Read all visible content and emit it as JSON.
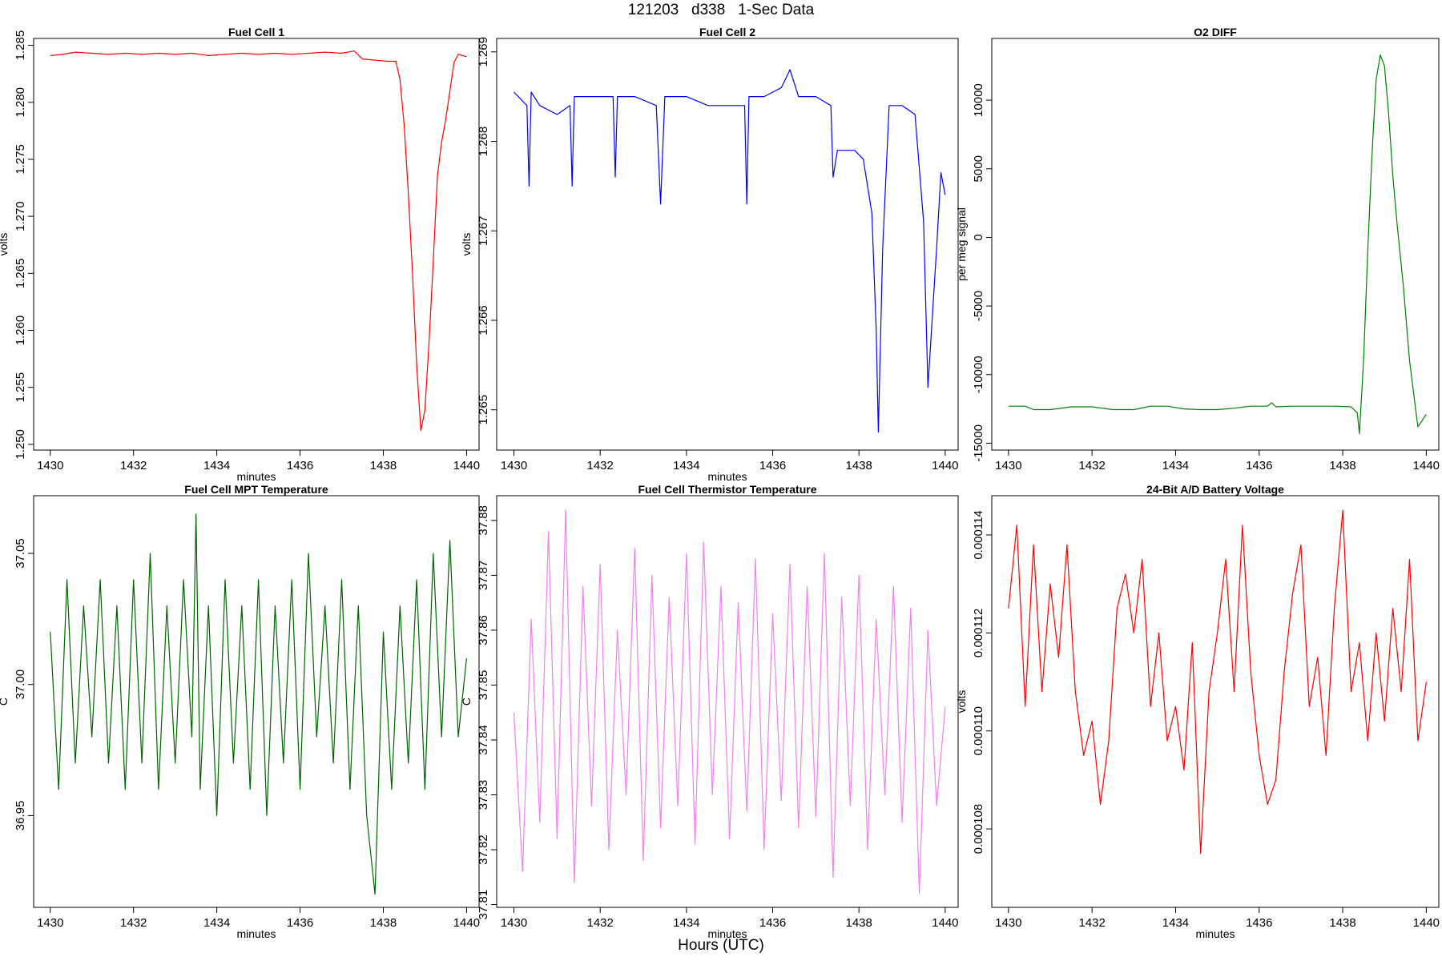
{
  "page": {
    "title": "121203   d338   1-Sec Data",
    "footer": "Hours (UTC)"
  },
  "chart_data": [
    {
      "type": "line",
      "title": "Fuel Cell 1",
      "xlabel": "minutes",
      "ylabel": "volts",
      "color": "#ff0000",
      "xlim": [
        1429.6,
        1440.3
      ],
      "ylim": [
        1.2495,
        1.2856
      ],
      "xticks": [
        1430,
        1432,
        1434,
        1436,
        1438,
        1440
      ],
      "xtick_labels": [
        "1430",
        "1432",
        "1434",
        "1436",
        "1438",
        "1440"
      ],
      "yticks": [
        1.25,
        1.255,
        1.26,
        1.265,
        1.27,
        1.275,
        1.28,
        1.285
      ],
      "ytick_labels": [
        "1.250",
        "1.255",
        "1.260",
        "1.265",
        "1.270",
        "1.275",
        "1.280",
        "1.285"
      ],
      "series": [
        {
          "x": [
            1430.0,
            1430.3,
            1430.6,
            1431.0,
            1431.4,
            1431.8,
            1432.2,
            1432.6,
            1433.0,
            1433.4,
            1433.8,
            1434.2,
            1434.6,
            1435.0,
            1435.4,
            1435.8,
            1436.2,
            1436.6,
            1437.0,
            1437.3,
            1437.5,
            1437.8,
            1438.1,
            1438.3,
            1438.4,
            1438.5,
            1438.6,
            1438.7,
            1438.8,
            1438.9,
            1439.0,
            1439.1,
            1439.2,
            1439.3,
            1439.4,
            1439.5,
            1439.6,
            1439.7,
            1439.8,
            1440.0
          ],
          "y": [
            1.2841,
            1.2842,
            1.2844,
            1.2843,
            1.2842,
            1.2843,
            1.2842,
            1.2843,
            1.2842,
            1.2843,
            1.2841,
            1.2842,
            1.2843,
            1.2842,
            1.2843,
            1.2842,
            1.2843,
            1.2844,
            1.2843,
            1.2845,
            1.2838,
            1.2837,
            1.2836,
            1.2836,
            1.282,
            1.278,
            1.272,
            1.265,
            1.257,
            1.2512,
            1.253,
            1.259,
            1.266,
            1.2735,
            1.2765,
            1.2785,
            1.281,
            1.2835,
            1.2842,
            1.284
          ]
        }
      ]
    },
    {
      "type": "line",
      "title": "Fuel Cell 2",
      "xlabel": "minutes",
      "ylabel": "volts",
      "color": "#0000ff",
      "xlim": [
        1429.6,
        1440.3
      ],
      "ylim": [
        1.26455,
        1.26915
      ],
      "xticks": [
        1430,
        1432,
        1434,
        1436,
        1438,
        1440
      ],
      "xtick_labels": [
        "1430",
        "1432",
        "1434",
        "1436",
        "1438",
        "1440"
      ],
      "yticks": [
        1.265,
        1.266,
        1.267,
        1.268,
        1.269
      ],
      "ytick_labels": [
        "1.265",
        "1.266",
        "1.267",
        "1.268",
        "1.269"
      ],
      "series": [
        {
          "x": [
            1430.0,
            1430.3,
            1430.35,
            1430.4,
            1430.6,
            1431.0,
            1431.3,
            1431.35,
            1431.4,
            1431.8,
            1432.3,
            1432.35,
            1432.4,
            1432.8,
            1433.3,
            1433.4,
            1433.5,
            1434.0,
            1434.5,
            1435.0,
            1435.35,
            1435.4,
            1435.45,
            1435.8,
            1436.2,
            1436.4,
            1436.6,
            1437.0,
            1437.35,
            1437.4,
            1437.5,
            1437.9,
            1438.1,
            1438.3,
            1438.4,
            1438.45,
            1438.55,
            1438.7,
            1439.0,
            1439.3,
            1439.5,
            1439.6,
            1439.8,
            1439.9,
            1440.0
          ],
          "y": [
            1.26855,
            1.2684,
            1.2675,
            1.26855,
            1.2684,
            1.2683,
            1.2684,
            1.2675,
            1.2685,
            1.2685,
            1.2685,
            1.2676,
            1.2685,
            1.2685,
            1.2684,
            1.2673,
            1.2685,
            1.2685,
            1.2684,
            1.2684,
            1.2684,
            1.2673,
            1.2685,
            1.2685,
            1.2686,
            1.2688,
            1.2685,
            1.2685,
            1.2684,
            1.2676,
            1.2679,
            1.2679,
            1.2678,
            1.2672,
            1.2659,
            1.26475,
            1.2668,
            1.2684,
            1.2684,
            1.2683,
            1.2671,
            1.26525,
            1.2668,
            1.26765,
            1.2674
          ]
        }
      ]
    },
    {
      "type": "line",
      "title": "O2 DIFF",
      "xlabel": "",
      "ylabel": "per meg signal",
      "color": "#008000",
      "xlim": [
        1429.6,
        1440.3
      ],
      "ylim": [
        -15500,
        14500
      ],
      "xticks": [
        1430,
        1432,
        1434,
        1436,
        1438,
        1440
      ],
      "xtick_labels": [
        "1430",
        "1432",
        "1434",
        "1436",
        "1438",
        "1440"
      ],
      "yticks": [
        -15000,
        -10000,
        -5000,
        0,
        5000,
        10000
      ],
      "ytick_labels": [
        "-15000",
        "-10000",
        "-5000",
        "0",
        "5000",
        "10000"
      ],
      "series": [
        {
          "x": [
            1430.0,
            1430.4,
            1430.6,
            1431.0,
            1431.5,
            1432.0,
            1432.5,
            1433.0,
            1433.4,
            1433.8,
            1434.2,
            1434.6,
            1435.0,
            1435.4,
            1435.8,
            1436.2,
            1436.3,
            1436.4,
            1436.8,
            1437.2,
            1437.8,
            1438.2,
            1438.35,
            1438.4,
            1438.5,
            1438.6,
            1438.7,
            1438.8,
            1438.9,
            1439.0,
            1439.1,
            1439.2,
            1439.3,
            1439.45,
            1439.6,
            1439.8,
            1440.0
          ],
          "y": [
            -12300,
            -12300,
            -12550,
            -12550,
            -12350,
            -12350,
            -12550,
            -12550,
            -12300,
            -12300,
            -12500,
            -12550,
            -12550,
            -12450,
            -12300,
            -12300,
            -12050,
            -12350,
            -12300,
            -12300,
            -12300,
            -12350,
            -12800,
            -14300,
            -9000,
            -1000,
            6000,
            11500,
            13300,
            12500,
            9000,
            4500,
            1000,
            -3500,
            -9000,
            -13800,
            -12900
          ]
        }
      ]
    },
    {
      "type": "line",
      "title": "Fuel Cell MPT Temperature",
      "xlabel": "minutes",
      "ylabel": "C",
      "color": "#006400",
      "xlim": [
        1429.6,
        1440.3
      ],
      "ylim": [
        36.915,
        37.072
      ],
      "xticks": [
        1430,
        1432,
        1434,
        1436,
        1438,
        1440
      ],
      "xtick_labels": [
        "1430",
        "1432",
        "1434",
        "1436",
        "1438",
        "1440"
      ],
      "yticks": [
        36.95,
        37.0,
        37.05
      ],
      "ytick_labels": [
        "36.95",
        "37.00",
        "37.05"
      ],
      "series": [
        {
          "x": [
            1430.0,
            1430.2,
            1430.4,
            1430.6,
            1430.8,
            1431.0,
            1431.2,
            1431.4,
            1431.6,
            1431.8,
            1432.0,
            1432.2,
            1432.4,
            1432.6,
            1432.8,
            1433.0,
            1433.2,
            1433.4,
            1433.5,
            1433.6,
            1433.8,
            1434.0,
            1434.2,
            1434.4,
            1434.6,
            1434.8,
            1435.0,
            1435.2,
            1435.4,
            1435.6,
            1435.8,
            1436.0,
            1436.2,
            1436.4,
            1436.6,
            1436.8,
            1437.0,
            1437.2,
            1437.4,
            1437.6,
            1437.8,
            1438.0,
            1438.2,
            1438.4,
            1438.6,
            1438.8,
            1439.0,
            1439.2,
            1439.4,
            1439.6,
            1439.8,
            1440.0
          ],
          "y": [
            37.02,
            36.96,
            37.04,
            36.97,
            37.03,
            36.98,
            37.04,
            36.97,
            37.03,
            36.96,
            37.04,
            36.97,
            37.05,
            36.96,
            37.03,
            36.97,
            37.04,
            36.98,
            37.065,
            36.96,
            37.03,
            36.95,
            37.04,
            36.97,
            37.03,
            36.96,
            37.04,
            36.95,
            37.03,
            36.97,
            37.04,
            36.96,
            37.05,
            36.98,
            37.03,
            36.97,
            37.04,
            36.96,
            37.03,
            36.95,
            36.92,
            37.02,
            36.96,
            37.03,
            36.97,
            37.04,
            36.96,
            37.05,
            36.98,
            37.055,
            36.98,
            37.01
          ]
        }
      ]
    },
    {
      "type": "line",
      "title": "Fuel Cell Thermistor Temperature",
      "xlabel": "minutes",
      "ylabel": "C",
      "color": "#ee82ee",
      "xlim": [
        1429.6,
        1440.3
      ],
      "ylim": [
        37.8095,
        37.8845
      ],
      "xticks": [
        1430,
        1432,
        1434,
        1436,
        1438,
        1440
      ],
      "xtick_labels": [
        "1430",
        "1432",
        "1434",
        "1436",
        "1438",
        "1440"
      ],
      "yticks": [
        37.81,
        37.82,
        37.83,
        37.84,
        37.85,
        37.86,
        37.87,
        37.88
      ],
      "ytick_labels": [
        "37.81",
        "37.82",
        "37.83",
        "37.84",
        "37.85",
        "37.86",
        "37.87",
        "37.88"
      ],
      "series": [
        {
          "x": [
            1430.0,
            1430.2,
            1430.4,
            1430.6,
            1430.8,
            1431.0,
            1431.2,
            1431.4,
            1431.6,
            1431.8,
            1432.0,
            1432.2,
            1432.4,
            1432.6,
            1432.8,
            1433.0,
            1433.2,
            1433.4,
            1433.6,
            1433.8,
            1434.0,
            1434.2,
            1434.4,
            1434.6,
            1434.8,
            1435.0,
            1435.2,
            1435.4,
            1435.6,
            1435.8,
            1436.0,
            1436.2,
            1436.4,
            1436.6,
            1436.8,
            1437.0,
            1437.2,
            1437.4,
            1437.6,
            1437.8,
            1438.0,
            1438.2,
            1438.4,
            1438.6,
            1438.8,
            1439.0,
            1439.2,
            1439.4,
            1439.6,
            1439.8,
            1440.0
          ],
          "y": [
            37.845,
            37.816,
            37.862,
            37.825,
            37.878,
            37.822,
            37.882,
            37.814,
            37.868,
            37.828,
            37.872,
            37.82,
            37.86,
            37.83,
            37.875,
            37.818,
            37.87,
            37.824,
            37.866,
            37.828,
            37.874,
            37.821,
            37.876,
            37.83,
            37.868,
            37.822,
            37.865,
            37.827,
            37.873,
            37.82,
            37.863,
            37.829,
            37.872,
            37.824,
            37.868,
            37.826,
            37.874,
            37.815,
            37.866,
            37.828,
            37.87,
            37.82,
            37.862,
            37.83,
            37.868,
            37.825,
            37.864,
            37.812,
            37.86,
            37.828,
            37.846
          ]
        }
      ]
    },
    {
      "type": "line",
      "title": "24-Bit A/D Battery Voltage",
      "xlabel": "minutes",
      "ylabel": "volts",
      "color": "#ff0000",
      "xlim": [
        1429.6,
        1440.3
      ],
      "ylim": [
        0.0001064,
        0.0001148
      ],
      "xticks": [
        1430,
        1432,
        1434,
        1436,
        1438,
        1440
      ],
      "xtick_labels": [
        "1430",
        "1432",
        "1434",
        "1436",
        "1438",
        "1440"
      ],
      "yticks": [
        0.000108,
        0.00011,
        0.000112,
        0.000114
      ],
      "ytick_labels": [
        "0.000108",
        "0.000110",
        "0.000112",
        "0.000114"
      ],
      "series": [
        {
          "x": [
            1430.0,
            1430.2,
            1430.4,
            1430.6,
            1430.8,
            1431.0,
            1431.2,
            1431.4,
            1431.6,
            1431.8,
            1432.0,
            1432.2,
            1432.4,
            1432.6,
            1432.8,
            1433.0,
            1433.2,
            1433.4,
            1433.6,
            1433.8,
            1434.0,
            1434.2,
            1434.4,
            1434.6,
            1434.8,
            1435.0,
            1435.2,
            1435.4,
            1435.6,
            1435.8,
            1436.0,
            1436.2,
            1436.4,
            1436.6,
            1436.8,
            1437.0,
            1437.2,
            1437.4,
            1437.6,
            1437.8,
            1438.0,
            1438.2,
            1438.4,
            1438.6,
            1438.8,
            1439.0,
            1439.2,
            1439.4,
            1439.6,
            1439.8,
            1440.0
          ],
          "y": [
            0.0001125,
            0.0001142,
            0.0001105,
            0.0001138,
            0.0001108,
            0.000113,
            0.0001115,
            0.0001138,
            0.0001108,
            0.0001095,
            0.0001102,
            0.0001085,
            0.0001098,
            0.0001125,
            0.0001132,
            0.000112,
            0.0001135,
            0.0001105,
            0.000112,
            0.0001098,
            0.0001105,
            0.0001092,
            0.0001118,
            0.0001075,
            0.0001108,
            0.000112,
            0.0001135,
            0.0001108,
            0.0001142,
            0.0001112,
            0.0001095,
            0.0001085,
            0.000109,
            0.0001112,
            0.0001128,
            0.0001138,
            0.0001105,
            0.0001115,
            0.0001095,
            0.0001125,
            0.0001145,
            0.0001108,
            0.0001118,
            0.0001098,
            0.000112,
            0.0001102,
            0.0001125,
            0.0001108,
            0.0001135,
            0.0001098,
            0.000111
          ]
        }
      ]
    }
  ]
}
